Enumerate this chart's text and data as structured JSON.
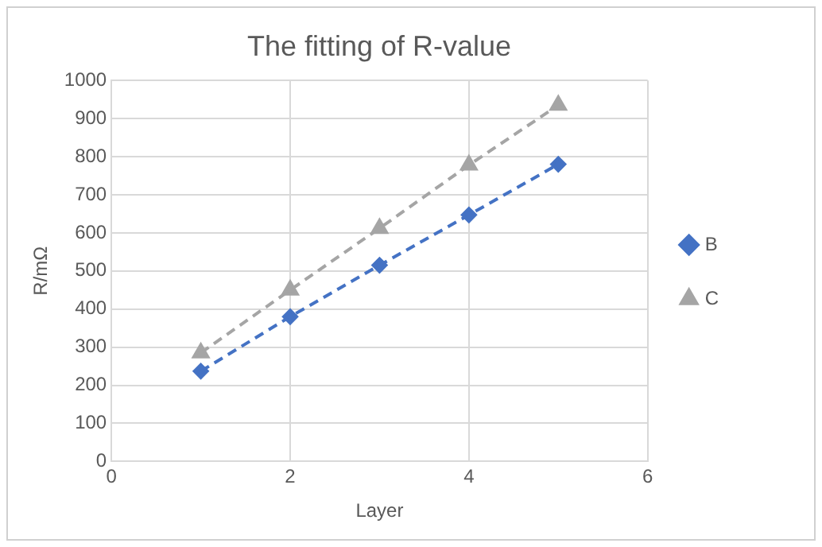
{
  "chart_data": {
    "type": "line",
    "title": "The fitting of R-value",
    "xlabel": "Layer",
    "ylabel": "R/mΩ",
    "x": [
      1,
      2,
      3,
      4,
      5
    ],
    "series": [
      {
        "name": "B",
        "color": "#4472c4",
        "values": [
          237,
          380,
          515,
          647,
          780
        ],
        "marker": "diamond"
      },
      {
        "name": "C",
        "color": "#a5a5a5",
        "values": [
          285,
          450,
          612,
          778,
          935
        ],
        "marker": "triangle"
      }
    ],
    "line_style": "dashed",
    "xlim": [
      0,
      6
    ],
    "xticks": [
      0,
      2,
      4,
      6
    ],
    "ylim": [
      0,
      1000
    ],
    "yticks": [
      0,
      100,
      200,
      300,
      400,
      500,
      600,
      700,
      800,
      900,
      1000
    ],
    "grid": true,
    "legend": "right"
  }
}
